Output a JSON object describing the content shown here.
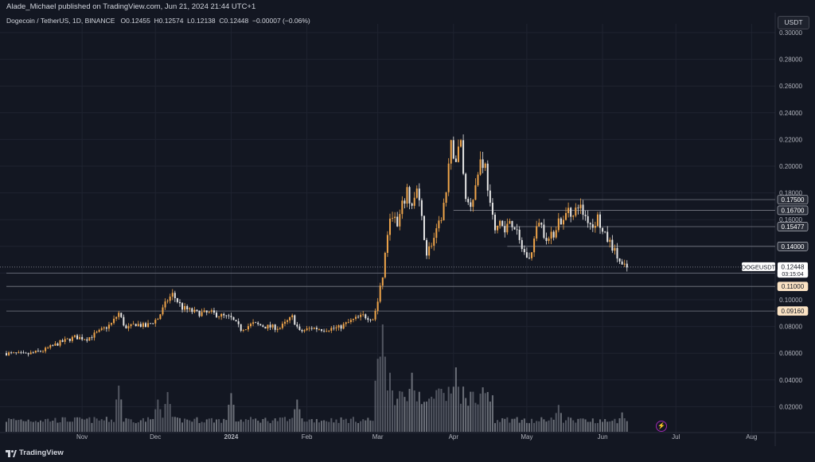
{
  "header": {
    "publisher": "Alade_Michael published on TradingView.com, Jun 21, 2024 21:44 UTC+1",
    "symbol": "Dogecoin / TetherUS, 1D, BINANCE",
    "ohlc": {
      "o_label": "O",
      "o": "0.12455",
      "h_label": "H",
      "h": "0.12574",
      "l_label": "L",
      "l": "0.12138",
      "c_label": "C",
      "c": "0.12448",
      "change": "−0.00007 (−0.06%)"
    },
    "currency_button": "USDT"
  },
  "footer": {
    "brand": "TradingView",
    "bolt_icon": "lightning-icon"
  },
  "colors": {
    "background": "#131722",
    "up": "#f0a54a",
    "down": "#e6e6e6",
    "level_line": "#787b86",
    "volume": "#5d606b"
  },
  "chart_data": {
    "type": "candlestick",
    "ylim": [
      0.0,
      0.3
    ],
    "y_ticks": [
      "0.30000",
      "0.28000",
      "0.26000",
      "0.24000",
      "0.22000",
      "0.20000",
      "0.18000",
      "0.16000",
      "0.14000",
      "0.12000",
      "0.10000",
      "0.08000",
      "0.06000",
      "0.04000",
      "0.02000"
    ],
    "y_tick_values": [
      0.3,
      0.28,
      0.26,
      0.24,
      0.22,
      0.2,
      0.18,
      0.16,
      0.14,
      0.12,
      0.1,
      0.08,
      0.06,
      0.04,
      0.02
    ],
    "x_labels": [
      {
        "label": "Nov",
        "day": 31
      },
      {
        "label": "Dec",
        "day": 61
      },
      {
        "label": "2024",
        "day": 92
      },
      {
        "label": "Feb",
        "day": 123
      },
      {
        "label": "Mar",
        "day": 152
      },
      {
        "label": "Apr",
        "day": 183
      },
      {
        "label": "May",
        "day": 213
      },
      {
        "label": "Jun",
        "day": 244
      },
      {
        "label": "Jul",
        "day": 274
      },
      {
        "label": "Aug",
        "day": 305
      }
    ],
    "horizontal_levels": [
      {
        "value": 0.175,
        "label": "0.17500",
        "style": "dark",
        "start_day": 222
      },
      {
        "value": 0.167,
        "label": "0.16700",
        "style": "dark",
        "start_day": 183
      },
      {
        "value": 0.15477,
        "label": "0.15477",
        "style": "dark",
        "start_day": 200
      },
      {
        "value": 0.14,
        "label": "0.14000",
        "style": "dark",
        "start_day": 205
      },
      {
        "value": 0.12,
        "label": "0.12000",
        "style": "dark",
        "start_day": 0
      },
      {
        "value": 0.11,
        "label": "0.11000",
        "style": "light",
        "start_day": 0
      },
      {
        "value": 0.0916,
        "label": "0.09160",
        "style": "light",
        "start_day": 0
      }
    ],
    "current_price": {
      "symbol": "DOGEUSDT",
      "value": 0.12448,
      "price_label": "0.12448",
      "countdown": "03:15:04"
    },
    "close_path": [
      [
        0,
        0.06
      ],
      [
        8,
        0.059
      ],
      [
        15,
        0.062
      ],
      [
        22,
        0.068
      ],
      [
        28,
        0.072
      ],
      [
        33,
        0.071
      ],
      [
        38,
        0.076
      ],
      [
        43,
        0.082
      ],
      [
        46,
        0.09
      ],
      [
        49,
        0.078
      ],
      [
        53,
        0.082
      ],
      [
        57,
        0.08
      ],
      [
        62,
        0.086
      ],
      [
        66,
        0.1
      ],
      [
        68,
        0.104
      ],
      [
        72,
        0.094
      ],
      [
        78,
        0.09
      ],
      [
        84,
        0.09
      ],
      [
        92,
        0.086
      ],
      [
        96,
        0.078
      ],
      [
        101,
        0.082
      ],
      [
        106,
        0.08
      ],
      [
        112,
        0.079
      ],
      [
        117,
        0.087
      ],
      [
        120,
        0.076
      ],
      [
        125,
        0.079
      ],
      [
        130,
        0.078
      ],
      [
        136,
        0.079
      ],
      [
        142,
        0.085
      ],
      [
        146,
        0.088
      ],
      [
        150,
        0.086
      ],
      [
        152,
        0.098
      ],
      [
        154,
        0.118
      ],
      [
        156,
        0.15
      ],
      [
        158,
        0.165
      ],
      [
        160,
        0.154
      ],
      [
        162,
        0.17
      ],
      [
        164,
        0.18
      ],
      [
        166,
        0.17
      ],
      [
        168,
        0.182
      ],
      [
        170,
        0.16
      ],
      [
        172,
        0.135
      ],
      [
        174,
        0.142
      ],
      [
        176,
        0.15
      ],
      [
        178,
        0.162
      ],
      [
        180,
        0.18
      ],
      [
        182,
        0.215
      ],
      [
        184,
        0.205
      ],
      [
        186,
        0.218
      ],
      [
        188,
        0.175
      ],
      [
        190,
        0.172
      ],
      [
        192,
        0.185
      ],
      [
        194,
        0.205
      ],
      [
        196,
        0.2
      ],
      [
        198,
        0.17
      ],
      [
        200,
        0.15
      ],
      [
        202,
        0.16
      ],
      [
        204,
        0.15
      ],
      [
        206,
        0.16
      ],
      [
        208,
        0.155
      ],
      [
        210,
        0.143
      ],
      [
        212,
        0.135
      ],
      [
        214,
        0.13
      ],
      [
        216,
        0.145
      ],
      [
        218,
        0.16
      ],
      [
        220,
        0.15
      ],
      [
        222,
        0.145
      ],
      [
        224,
        0.15
      ],
      [
        226,
        0.16
      ],
      [
        228,
        0.158
      ],
      [
        230,
        0.17
      ],
      [
        232,
        0.162
      ],
      [
        234,
        0.172
      ],
      [
        236,
        0.165
      ],
      [
        238,
        0.16
      ],
      [
        240,
        0.155
      ],
      [
        242,
        0.162
      ],
      [
        244,
        0.15
      ],
      [
        246,
        0.145
      ],
      [
        248,
        0.14
      ],
      [
        250,
        0.132
      ],
      [
        252,
        0.125
      ],
      [
        254,
        0.124
      ]
    ],
    "volume_peaks": [
      {
        "day": 46,
        "value": 0.43
      },
      {
        "day": 62,
        "value": 0.3
      },
      {
        "day": 66,
        "value": 0.37
      },
      {
        "day": 92,
        "value": 0.36
      },
      {
        "day": 119,
        "value": 0.3
      },
      {
        "day": 152,
        "value": 0.68
      },
      {
        "day": 154,
        "value": 1.0
      },
      {
        "day": 157,
        "value": 0.55
      },
      {
        "day": 166,
        "value": 0.55
      },
      {
        "day": 178,
        "value": 0.4
      },
      {
        "day": 184,
        "value": 0.6
      },
      {
        "day": 196,
        "value": 0.36
      },
      {
        "day": 226,
        "value": 0.25
      },
      {
        "day": 252,
        "value": 0.18
      }
    ]
  }
}
